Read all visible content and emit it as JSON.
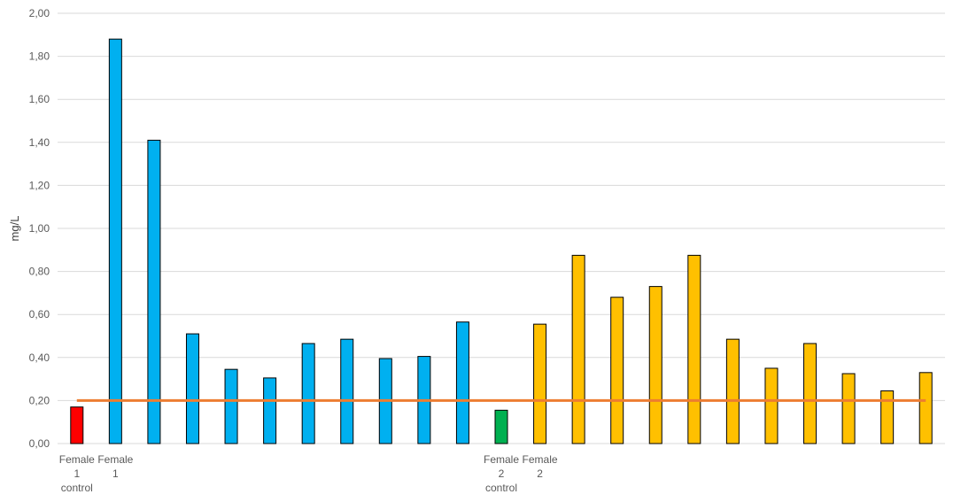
{
  "chart_data": {
    "type": "bar",
    "title": "",
    "xlabel": "",
    "ylabel": "mg/L",
    "ylim": [
      0,
      2.0
    ],
    "ytick_step": 0.2,
    "ytick_labels": [
      "0,00",
      "0,20",
      "0,40",
      "0,60",
      "0,80",
      "1,00",
      "1,20",
      "1,40",
      "1,60",
      "1,80",
      "2,00"
    ],
    "grid": true,
    "legend": "none",
    "categories": [
      "Female 1 control",
      "Female 1",
      "",
      "",
      "",
      "",
      "",
      "",
      "",
      "",
      "",
      "Female 2 control",
      "Female 2",
      "",
      "",
      "",
      "",
      "",
      "",
      "",
      "",
      "",
      ""
    ],
    "values": [
      0.17,
      1.88,
      1.41,
      0.51,
      0.345,
      0.305,
      0.465,
      0.485,
      0.395,
      0.405,
      0.565,
      0.155,
      0.555,
      0.875,
      0.68,
      0.73,
      0.875,
      0.485,
      0.35,
      0.465,
      0.325,
      0.245,
      0.33
    ],
    "colors": [
      "#FF0000",
      "#00B0F0",
      "#00B0F0",
      "#00B0F0",
      "#00B0F0",
      "#00B0F0",
      "#00B0F0",
      "#00B0F0",
      "#00B0F0",
      "#00B0F0",
      "#00B0F0",
      "#00B050",
      "#FFC000",
      "#FFC000",
      "#FFC000",
      "#FFC000",
      "#FFC000",
      "#FFC000",
      "#FFC000",
      "#FFC000",
      "#FFC000",
      "#FFC000",
      "#FFC000"
    ],
    "category_label_lines": [
      [
        "Female",
        "1",
        "control"
      ],
      [
        "Female",
        "1"
      ],
      [],
      [],
      [],
      [],
      [],
      [],
      [],
      [],
      [],
      [
        "Female",
        "2",
        "control"
      ],
      [
        "Female",
        "2"
      ],
      [],
      [],
      [],
      [],
      [],
      [],
      [],
      [],
      [],
      []
    ],
    "reference_line": {
      "value": 0.2,
      "color": "#ED7D31"
    },
    "grid_color": "#D9D9D9"
  }
}
